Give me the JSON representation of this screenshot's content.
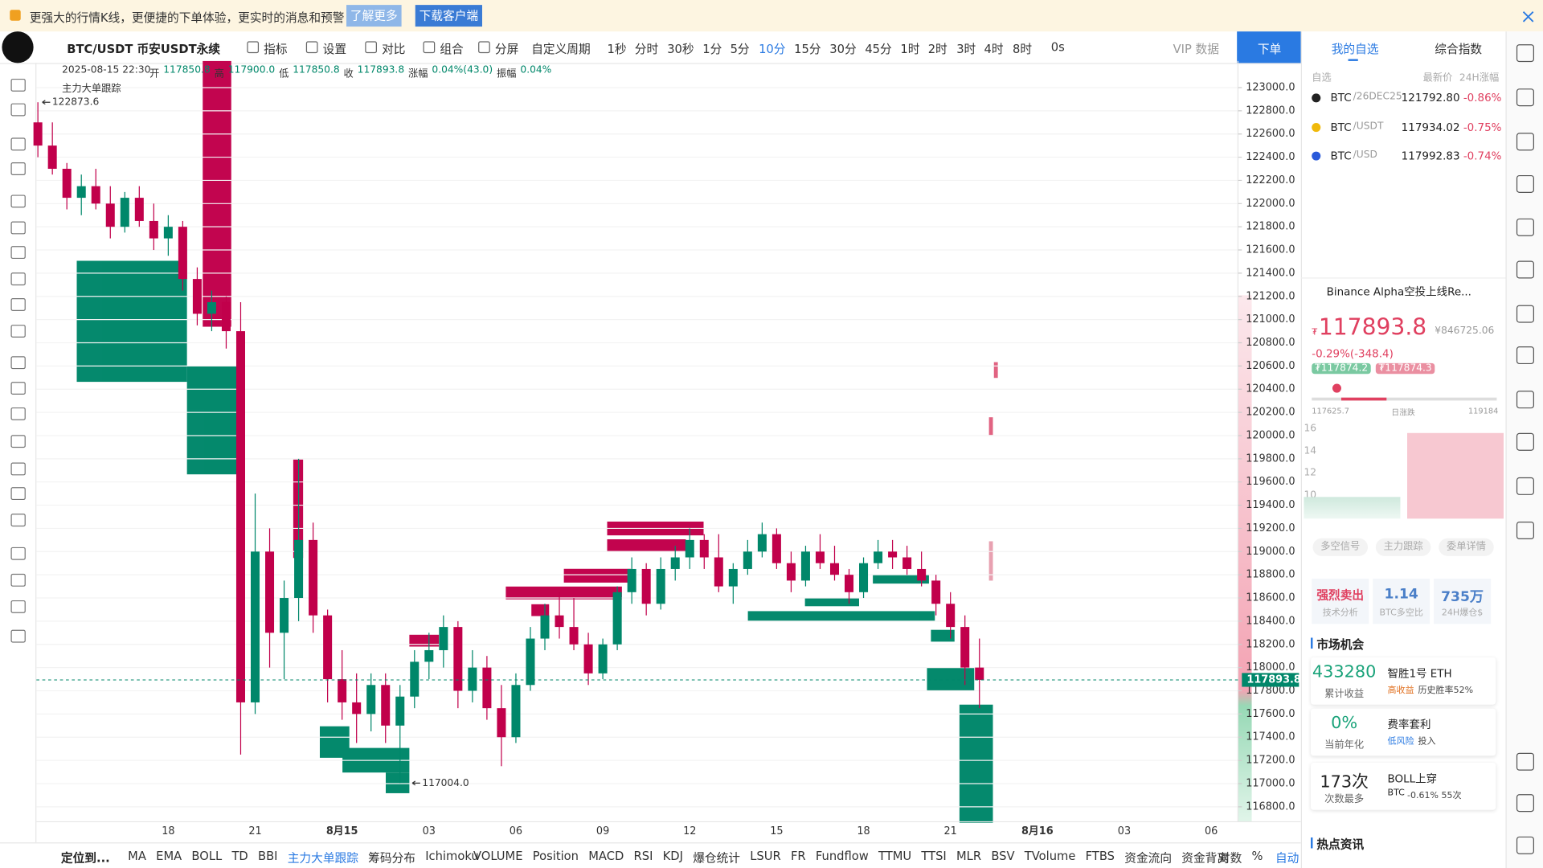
{
  "banner": {
    "text": "更强大的行情K线，更便捷的下单体验，更实时的消息和预警",
    "learn_more": "了解更多",
    "download": "下载客户端"
  },
  "toolbar": {
    "symbol": "BTC/USDT 币安USDT永续",
    "items": [
      "指标",
      "设置",
      "对比",
      "组合",
      "分屏"
    ],
    "custom_period": "自定义周期",
    "periods": [
      "1秒",
      "分时",
      "30秒",
      "1分",
      "5分",
      "10分",
      "15分",
      "30分",
      "45分",
      "1时",
      "2时",
      "3时",
      "4时",
      "8时"
    ],
    "countdown": "0s",
    "vip": "VIP 数据",
    "order": "下单"
  },
  "ohlc": {
    "datetime": "2025-08-15 22:30",
    "open_label": "开",
    "open": "117850.8",
    "high_label": "高",
    "high": "117900.0",
    "low_label": "低",
    "low": "117850.8",
    "close_label": "收",
    "close": "117893.8",
    "change_label": "涨幅",
    "change": "0.04%(43.0)",
    "amplitude_label": "振幅",
    "amplitude": "0.04%",
    "indicator": "主力大单跟踪"
  },
  "chart_data": {
    "type": "candlestick",
    "up_color": "#00876a",
    "down_color": "#c1004b",
    "grid": true,
    "categories": [
      null,
      null,
      null,
      null,
      null,
      null,
      null,
      null,
      null,
      "18",
      null,
      null,
      null,
      null,
      null,
      "21",
      null,
      null,
      null,
      null,
      null,
      "8月15",
      null,
      null,
      null,
      null,
      null,
      "03",
      null,
      null,
      null,
      null,
      null,
      "06",
      null,
      null,
      null,
      null,
      null,
      "09",
      null,
      null,
      null,
      null,
      null,
      "12",
      null,
      null,
      null,
      null,
      null,
      "15",
      null,
      null,
      null,
      null,
      null,
      "18",
      null,
      null,
      null,
      null,
      null,
      "21",
      null,
      null,
      null,
      null,
      null,
      "8月16",
      null,
      null,
      null,
      null,
      null,
      "03",
      null,
      null,
      null,
      null,
      null,
      "06",
      null
    ],
    "open": [
      122700,
      122500,
      122300,
      122050,
      122150,
      122000,
      121800,
      122050,
      121850,
      121700,
      121800,
      121350,
      121050,
      121150,
      120900,
      117700,
      119000,
      118300,
      118600,
      119100,
      118450,
      117900,
      117700,
      117600,
      117850,
      117500,
      117750,
      118050,
      118150,
      118350,
      117800,
      118000,
      117650,
      117400,
      117850,
      118250,
      118450,
      118350,
      118200,
      117950,
      118200,
      118650,
      118850,
      118550,
      118850,
      118950,
      119100,
      118950,
      118700,
      118850,
      119000,
      119150,
      118900,
      118750,
      119000,
      118900,
      118800,
      118650,
      118900,
      119000,
      118950,
      118850,
      118750,
      118550,
      118350,
      118000,
      null,
      null,
      null,
      null,
      null,
      null,
      null,
      null,
      null,
      null,
      null,
      null,
      null,
      null,
      null,
      null,
      null
    ],
    "high": [
      122873.6,
      122700,
      122350,
      122250,
      122300,
      122150,
      122100,
      122150,
      122000,
      121900,
      121850,
      121450,
      121250,
      121200,
      121150,
      119500,
      119200,
      118750,
      119800,
      119250,
      118500,
      118150,
      117950,
      117950,
      117950,
      117850,
      118150,
      118300,
      118450,
      118400,
      118150,
      118100,
      117850,
      117950,
      118350,
      118550,
      118650,
      118600,
      118300,
      118250,
      118700,
      118950,
      118900,
      118950,
      119050,
      119200,
      119150,
      119150,
      118900,
      119100,
      119250,
      119200,
      119000,
      119050,
      119150,
      119050,
      118850,
      118950,
      119100,
      119100,
      119050,
      119000,
      118800,
      118650,
      118450,
      118250,
      null,
      null,
      null,
      null,
      null,
      null,
      null,
      null,
      null,
      null,
      null,
      null,
      null,
      null,
      null,
      null,
      null
    ],
    "low": [
      122400,
      122250,
      121950,
      121900,
      121950,
      121700,
      121750,
      121800,
      121600,
      121550,
      121250,
      120950,
      120900,
      120750,
      117250,
      117600,
      118000,
      117900,
      118400,
      118300,
      117700,
      117550,
      117350,
      117450,
      117350,
      117004,
      117650,
      117900,
      118000,
      117650,
      117700,
      117550,
      117150,
      117350,
      117800,
      118150,
      118250,
      118150,
      117850,
      117900,
      118150,
      118550,
      118450,
      118500,
      118750,
      118850,
      118850,
      118650,
      118550,
      118800,
      118950,
      118850,
      118650,
      118700,
      118850,
      118750,
      118550,
      118600,
      118850,
      118850,
      118800,
      118700,
      118450,
      118250,
      117850,
      117650,
      null,
      null,
      null,
      null,
      null,
      null,
      null,
      null,
      null,
      null,
      null,
      null,
      null,
      null,
      null,
      null,
      null
    ],
    "close": [
      122500,
      122300,
      122050,
      122150,
      122000,
      121800,
      122050,
      121850,
      121700,
      121800,
      121350,
      121050,
      121150,
      120900,
      117700,
      119000,
      118300,
      118600,
      119100,
      118450,
      117900,
      117700,
      117600,
      117850,
      117500,
      117750,
      118050,
      118150,
      118350,
      117800,
      118000,
      117650,
      117400,
      117850,
      118250,
      118450,
      118350,
      118200,
      117950,
      118200,
      118650,
      118850,
      118550,
      118850,
      118950,
      119100,
      118950,
      118700,
      118850,
      119000,
      119150,
      118900,
      118750,
      119000,
      118900,
      118800,
      118650,
      118900,
      119000,
      118950,
      118850,
      118750,
      118550,
      118350,
      118000,
      117893.8,
      null,
      null,
      null,
      null,
      null,
      null,
      null,
      null,
      null,
      null,
      null,
      null,
      null,
      null,
      null,
      null,
      null
    ],
    "ylim": [
      116671,
      123229
    ],
    "yticks": [
      {
        "value": 116800,
        "label": "116800.0"
      },
      {
        "value": 117000,
        "label": "117000.0"
      },
      {
        "value": 117200,
        "label": "117200.0"
      },
      {
        "value": 117400,
        "label": "117400.0"
      },
      {
        "value": 117600,
        "label": "117600.0"
      },
      {
        "value": 117800,
        "label": "117800.0"
      },
      {
        "value": 118000,
        "label": "118000.0"
      },
      {
        "value": 118200,
        "label": "118200.0"
      },
      {
        "value": 118400,
        "label": "118400.0"
      },
      {
        "value": 118600,
        "label": "118600.0"
      },
      {
        "value": 118800,
        "label": "118800.0"
      },
      {
        "value": 119000,
        "label": "119000.0"
      },
      {
        "value": 119200,
        "label": "119200.0"
      },
      {
        "value": 119400,
        "label": "119400.0"
      },
      {
        "value": 119600,
        "label": "119600.0"
      },
      {
        "value": 119800,
        "label": "119800.0"
      },
      {
        "value": 120000,
        "label": "120000.0"
      },
      {
        "value": 120200,
        "label": "120200.0"
      },
      {
        "value": 120400,
        "label": "120400.0"
      },
      {
        "value": 120600,
        "label": "120600.0"
      },
      {
        "value": 120800,
        "label": "120800.0"
      },
      {
        "value": 121000,
        "label": "121000.0"
      },
      {
        "value": 121200,
        "label": "121200.0"
      },
      {
        "value": 121400,
        "label": "121400.0"
      },
      {
        "value": 121600,
        "label": "121600.0"
      },
      {
        "value": 121800,
        "label": "121800.0"
      },
      {
        "value": 122000,
        "label": "122000.0"
      },
      {
        "value": 122200,
        "label": "122200.0"
      },
      {
        "value": 122400,
        "label": "122400.0"
      },
      {
        "value": 122600,
        "label": "122600.0"
      },
      {
        "value": 122800,
        "label": "122800.0"
      },
      {
        "value": 123000,
        "label": "123000.0"
      }
    ],
    "last_price": 117893.8,
    "high_marker": 122873.6,
    "low_marker": {
      "value": 117004,
      "label": "117004.0"
    }
  },
  "bottom_bar": {
    "locate": "定位到...",
    "overlays": [
      "MA",
      "EMA",
      "BOLL",
      "TD",
      "BBI",
      "主力大单跟踪",
      "筹码分布",
      "Ichimoku"
    ],
    "oscillators": [
      "VOLUME",
      "Position",
      "MACD",
      "RSI",
      "KDJ",
      "爆仓统计",
      "LSUR",
      "FR",
      "Fundflow",
      "TTMU",
      "TTSI",
      "MLR",
      "BSV",
      "TVolume",
      "FTBS",
      "资金流向",
      "资金背离"
    ],
    "log": "对数",
    "percent": "%",
    "auto": "自动"
  },
  "side_panel": {
    "tabs": [
      "我的自选",
      "综合指数"
    ],
    "list_header": [
      "自选",
      "最新价",
      "24H涨幅"
    ],
    "watchlist": [
      {
        "symbol": "BTC",
        "pair": "/26DEC25",
        "price": "121792.80",
        "change": "-0.86%"
      },
      {
        "symbol": "BTC",
        "pair": "/USDT",
        "price": "117934.02",
        "change": "-0.75%"
      },
      {
        "symbol": "BTC",
        "pair": "/USD",
        "price": "117992.83",
        "change": "-0.74%"
      }
    ],
    "news_ticker": "Binance Alpha空投上线Re...",
    "price": {
      "currency": "₮",
      "last": "117893.8",
      "cny": "¥846725.06",
      "change": "-0.29%(-348.4)",
      "bid": "₮117874.2",
      "ask": "₮117874.3",
      "range_low": "117625.7",
      "range_label": "日涨跌",
      "range_high": "119184",
      "mini_axis": [
        "16",
        "14",
        "12",
        "10"
      ]
    },
    "signal_tabs": [
      "多空信号",
      "主力跟踪",
      "委单详情"
    ],
    "stats": [
      {
        "value": "强烈卖出",
        "label": "技术分析"
      },
      {
        "value": "1.14",
        "label": "BTC多空比"
      },
      {
        "value": "735万",
        "label": "24H爆仓$"
      }
    ],
    "opportunity_title": "市场机会",
    "cards": [
      {
        "value": "433280",
        "label": "累计收益",
        "name": "智胜1号 ETH",
        "tag": "高收益",
        "desc": "历史胜率52%"
      },
      {
        "value": "0%",
        "label": "当前年化",
        "name": "费率套利",
        "tag": "低风险",
        "desc": "投入"
      },
      {
        "value": "173次",
        "label": "次数最多",
        "name": "BOLL上穿",
        "tag": "BTC",
        "desc": "-0.61% 55次"
      }
    ],
    "hot_news": "热点资讯"
  }
}
